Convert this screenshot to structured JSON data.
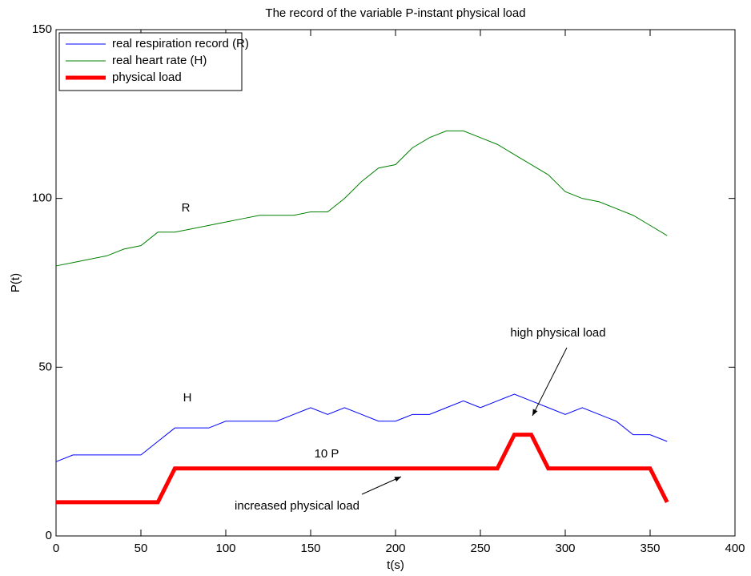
{
  "chart_data": {
    "type": "line",
    "title": "The record of the variable P-instant physical load",
    "xlabel": "t(s)",
    "ylabel": "P(t)",
    "x": [
      0,
      10,
      20,
      30,
      40,
      50,
      60,
      70,
      80,
      90,
      100,
      110,
      120,
      130,
      140,
      150,
      160,
      170,
      180,
      190,
      200,
      210,
      220,
      230,
      240,
      250,
      260,
      270,
      280,
      290,
      300,
      310,
      320,
      330,
      340,
      350,
      360
    ],
    "series": [
      {
        "name": "real respiration record (R)",
        "color": "#0000ff",
        "width": 1,
        "values": [
          22,
          24,
          24,
          24,
          24,
          24,
          28,
          32,
          32,
          32,
          34,
          34,
          34,
          34,
          36,
          38,
          36,
          38,
          36,
          34,
          34,
          36,
          36,
          38,
          40,
          38,
          40,
          42,
          40,
          38,
          36,
          38,
          36,
          34,
          30,
          30,
          28
        ]
      },
      {
        "name": "real heart rate (H)",
        "color": "#008000",
        "width": 1,
        "values": [
          80,
          81,
          82,
          83,
          85,
          86,
          90,
          90,
          91,
          92,
          93,
          94,
          95,
          95,
          95,
          96,
          96,
          100,
          105,
          109,
          110,
          115,
          118,
          120,
          120,
          118,
          116,
          113,
          110,
          107,
          102,
          100,
          99,
          97,
          95,
          92,
          89
        ]
      },
      {
        "name": "physical load",
        "color": "#ff0000",
        "width": 5,
        "values": [
          10,
          10,
          10,
          10,
          10,
          10,
          10,
          20,
          20,
          20,
          20,
          20,
          20,
          20,
          20,
          20,
          20,
          20,
          20,
          20,
          20,
          20,
          20,
          20,
          20,
          20,
          20,
          30,
          30,
          20,
          20,
          20,
          20,
          20,
          20,
          20,
          10
        ]
      }
    ],
    "annotations": [
      "R",
      "H",
      "10 P",
      "high physical load",
      "increased physical load"
    ],
    "xlim": [
      0,
      400
    ],
    "xticks": [
      0,
      50,
      100,
      150,
      200,
      250,
      300,
      350,
      400
    ],
    "ylim": [
      0,
      150
    ],
    "yticks": [
      0,
      50,
      100,
      150
    ],
    "legend": "upper left"
  }
}
